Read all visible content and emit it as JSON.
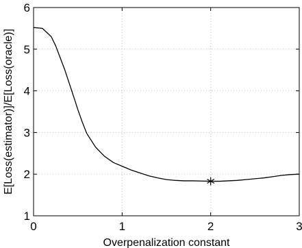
{
  "chart_data": {
    "type": "line",
    "title": "",
    "xlabel": "Overpenalization constant",
    "ylabel": "E[Loss(estimator)]/E[Loss(oracle)]",
    "xlim": [
      0,
      3
    ],
    "ylim": [
      1,
      6
    ],
    "xticks": [
      "0",
      "1",
      "2",
      "3"
    ],
    "yticks": [
      "1",
      "2",
      "3",
      "4",
      "5",
      "6"
    ],
    "grid": true,
    "series": [
      {
        "x": [
          0,
          0.1,
          0.2,
          0.25,
          0.3,
          0.35,
          0.4,
          0.45,
          0.5,
          0.55,
          0.6,
          0.7,
          0.8,
          0.9,
          1.0,
          1.1,
          1.2,
          1.3,
          1.4,
          1.5,
          1.6,
          1.7,
          1.8,
          1.9,
          2.0,
          2.1,
          2.2,
          2.3,
          2.4,
          2.5,
          2.6,
          2.7,
          2.8,
          2.9,
          3.0
        ],
        "values": [
          5.52,
          5.5,
          5.3,
          5.08,
          4.8,
          4.52,
          4.2,
          3.88,
          3.55,
          3.25,
          2.98,
          2.65,
          2.43,
          2.28,
          2.19,
          2.1,
          2.03,
          1.96,
          1.91,
          1.87,
          1.85,
          1.84,
          1.84,
          1.835,
          1.83,
          1.83,
          1.84,
          1.85,
          1.87,
          1.89,
          1.91,
          1.94,
          1.97,
          1.99,
          2.0
        ]
      }
    ],
    "marker": {
      "symbol": "*",
      "x": 2.0,
      "y": 1.83
    }
  }
}
